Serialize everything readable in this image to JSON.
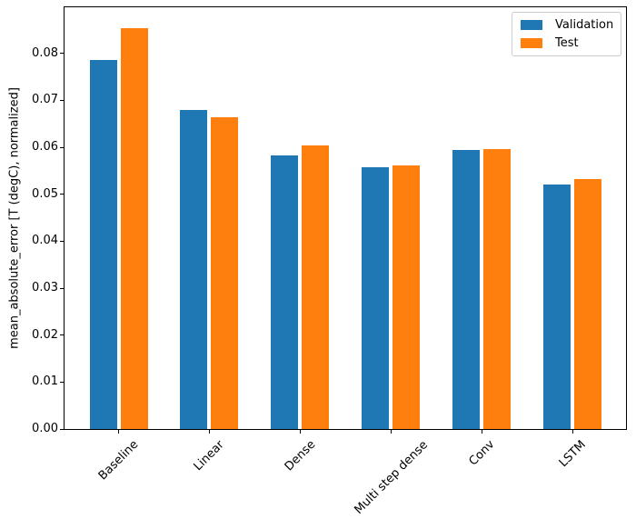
{
  "chart_data": {
    "type": "bar",
    "title": "",
    "xlabel": "",
    "ylabel": "mean_absolute_error [T (degC), normalized]",
    "categories": [
      "Baseline",
      "Linear",
      "Dense",
      "Multi step dense",
      "Conv",
      "LSTM"
    ],
    "series": [
      {
        "name": "Validation",
        "color": "#1f77b4",
        "values": [
          0.0785,
          0.0679,
          0.0582,
          0.0557,
          0.0594,
          0.0521
        ]
      },
      {
        "name": "Test",
        "color": "#ff7f0e",
        "values": [
          0.0853,
          0.0663,
          0.0603,
          0.0561,
          0.0596,
          0.0532
        ]
      }
    ],
    "ylim": [
      0,
      0.09
    ],
    "ytick_labels": [
      "0.00",
      "0.01",
      "0.02",
      "0.03",
      "0.04",
      "0.05",
      "0.06",
      "0.07",
      "0.08"
    ],
    "x_tick_rotation": 45,
    "grid": false,
    "legend_position": "upper right",
    "plot_background": "#ffffff",
    "spine_color": "#000000",
    "legend_border_color": "#cccccc"
  }
}
